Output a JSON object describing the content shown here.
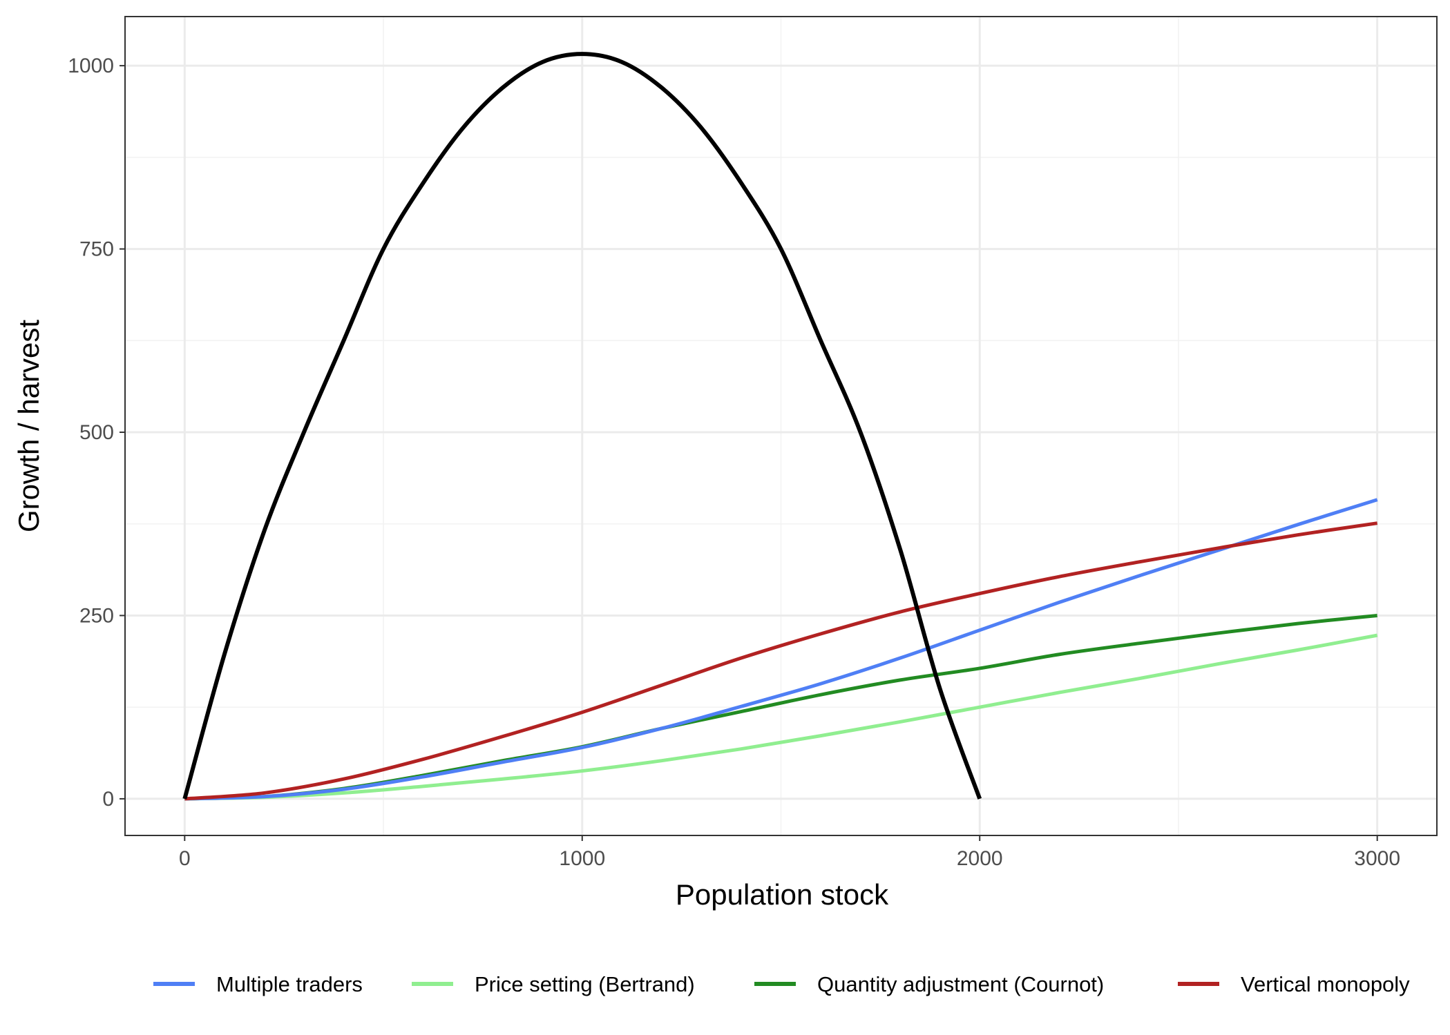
{
  "chart_data": {
    "type": "line",
    "title": "",
    "xlabel": "Population stock",
    "ylabel": "Growth / harvest",
    "xlim": [
      -150,
      3150
    ],
    "ylim": [
      -50,
      1067
    ],
    "x_ticks": [
      0,
      1000,
      2000,
      3000
    ],
    "x_tick_labels": [
      "0",
      "1000",
      "2000",
      "3000"
    ],
    "y_ticks": [
      0,
      250,
      500,
      750,
      1000
    ],
    "y_tick_labels": [
      "0",
      "250",
      "500",
      "750",
      "1000"
    ],
    "x_minor_grid": [
      500,
      1500,
      2500
    ],
    "y_minor_grid": [
      125,
      375,
      625,
      875
    ],
    "grid": true,
    "legend_position": "bottom",
    "series": [
      {
        "key": "growth",
        "color": "#000000",
        "x": [
          0,
          100,
          200,
          300,
          400,
          500,
          600,
          700,
          800,
          900,
          1000,
          1100,
          1200,
          1300,
          1400,
          1500,
          1600,
          1700,
          1800,
          1900,
          2000
        ],
        "y": [
          0,
          197,
          365,
          500,
          625,
          750,
          840,
          915,
          970,
          1005,
          1016,
          1005,
          970,
          915,
          840,
          750,
          625,
          500,
          340,
          150,
          0
        ]
      },
      {
        "name": "Multiple traders",
        "color": "#4f7ff5",
        "x": [
          0,
          200,
          400,
          600,
          800,
          1000,
          1200,
          1400,
          1600,
          1800,
          2000,
          2200,
          2400,
          2600,
          2800,
          3000
        ],
        "y": [
          0,
          3,
          13,
          30,
          50,
          70,
          96,
          126,
          157,
          192,
          230,
          268,
          304,
          339,
          374,
          408
        ]
      },
      {
        "name": "Price setting (Bertrand)",
        "color": "#90ee90",
        "x": [
          0,
          200,
          400,
          600,
          800,
          1000,
          1200,
          1400,
          1600,
          1800,
          2000,
          2200,
          2400,
          2600,
          2800,
          3000
        ],
        "y": [
          0,
          2,
          8,
          17,
          27,
          38,
          52,
          68,
          86,
          105,
          125,
          145,
          164,
          184,
          203,
          223
        ]
      },
      {
        "name": "Quantity adjustment (Cournot)",
        "color": "#228b22",
        "x": [
          0,
          200,
          400,
          600,
          800,
          1000,
          1200,
          1400,
          1600,
          1800,
          2000,
          2200,
          2400,
          2600,
          2800,
          3000
        ],
        "y": [
          0,
          3,
          14,
          32,
          52,
          71,
          96,
          119,
          142,
          162,
          178,
          197,
          212,
          226,
          239,
          250
        ]
      },
      {
        "name": "Vertical monopoly",
        "color": "#b22222",
        "x": [
          0,
          200,
          400,
          600,
          800,
          1000,
          1200,
          1400,
          1600,
          1800,
          2000,
          2200,
          2400,
          2600,
          2800,
          3000
        ],
        "y": [
          0,
          8,
          27,
          54,
          85,
          118,
          155,
          192,
          225,
          255,
          280,
          303,
          323,
          342,
          360,
          376
        ]
      }
    ]
  }
}
